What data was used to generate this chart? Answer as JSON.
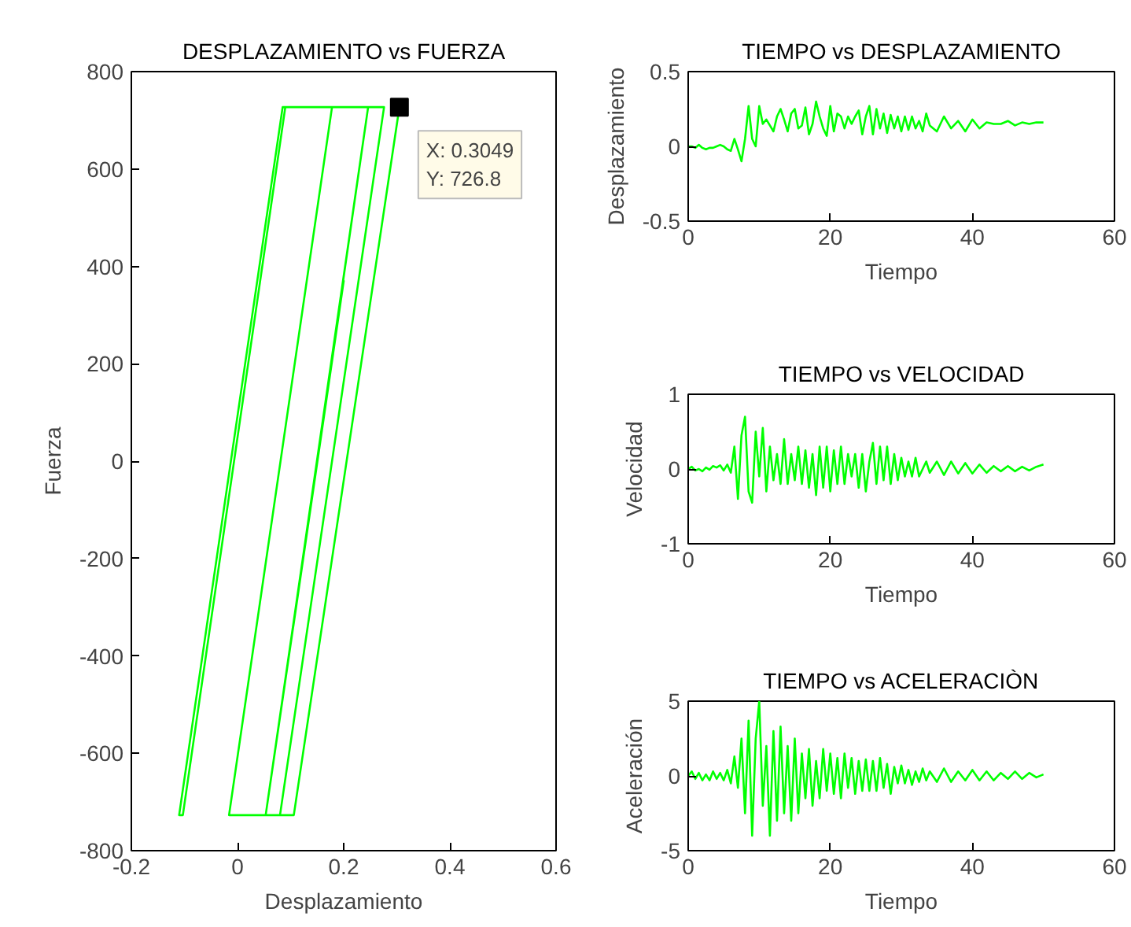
{
  "chart_data": [
    {
      "type": "line",
      "title": "DESPLAZAMIENTO vs FUERZA",
      "xlabel": "Desplazamiento",
      "ylabel": "Fuerza",
      "color": "#00ff00",
      "grid": false,
      "x": [
        0.15,
        0.246,
        0.276,
        0.08,
        -0.016,
        -0.016,
        0.178,
        0.085,
        -0.11,
        -0.103,
        0.09,
        0.246,
        0.053,
        0.2,
        0.105,
        0.18,
        0.053,
        0.106,
        0.3049
      ],
      "values": [
        0,
        727,
        727,
        -727,
        -727,
        -727,
        727,
        727,
        -727,
        -727,
        727,
        727,
        -727,
        370,
        -340,
        220,
        -727,
        -727,
        726.8
      ],
      "xlim": [
        -0.2,
        0.6
      ],
      "ylim": [
        -800,
        800
      ],
      "xticks": [
        -0.2,
        0,
        0.2,
        0.4,
        0.6
      ],
      "yticks": [
        -800,
        -600,
        -400,
        -200,
        0,
        200,
        400,
        600,
        800
      ],
      "annotations": [
        {
          "text": "X: 0.3049\nY: 726.8",
          "x": 0.3049,
          "y": 726.8
        }
      ]
    },
    {
      "type": "line",
      "title": "TIEMPO vs DESPLAZAMIENTO",
      "xlabel": "Tiempo",
      "ylabel": "Desplazamiento",
      "color": "#00ff00",
      "grid": false,
      "x": [
        0,
        0.5,
        1,
        1.5,
        2,
        2.5,
        3,
        3.5,
        4,
        4.5,
        5,
        5.5,
        6,
        6.5,
        7,
        7.5,
        8,
        8.5,
        9,
        9.5,
        10,
        10.5,
        11,
        11.5,
        12,
        12.5,
        13,
        13.5,
        14,
        14.5,
        15,
        15.5,
        16,
        16.5,
        17,
        17.5,
        18,
        18.5,
        19,
        19.5,
        20,
        20.5,
        21,
        21.5,
        22,
        22.5,
        23,
        23.5,
        24,
        24.5,
        25,
        25.5,
        26,
        26.5,
        27,
        27.5,
        28,
        28.5,
        29,
        29.5,
        30,
        30.5,
        31,
        31.5,
        32,
        32.5,
        33,
        33.5,
        34,
        35,
        36,
        37,
        38,
        39,
        40,
        41,
        42,
        43,
        44,
        45,
        46,
        47,
        48,
        49,
        50
      ],
      "values": [
        0,
        0,
        -0.01,
        0.01,
        -0.01,
        -0.02,
        -0.01,
        -0.01,
        0.0,
        0.01,
        0.0,
        -0.02,
        -0.03,
        0.05,
        -0.02,
        -0.1,
        0.05,
        0.27,
        0.05,
        0.0,
        0.27,
        0.15,
        0.18,
        0.14,
        0.1,
        0.2,
        0.25,
        0.18,
        0.1,
        0.22,
        0.25,
        0.12,
        0.14,
        0.26,
        0.08,
        0.15,
        0.3,
        0.2,
        0.12,
        0.07,
        0.27,
        0.1,
        0.22,
        0.2,
        0.12,
        0.2,
        0.15,
        0.2,
        0.24,
        0.08,
        0.2,
        0.27,
        0.08,
        0.25,
        0.12,
        0.22,
        0.09,
        0.21,
        0.12,
        0.2,
        0.1,
        0.2,
        0.11,
        0.2,
        0.12,
        0.17,
        0.1,
        0.22,
        0.14,
        0.1,
        0.2,
        0.12,
        0.17,
        0.1,
        0.18,
        0.12,
        0.16,
        0.15,
        0.15,
        0.17,
        0.14,
        0.16,
        0.15,
        0.16,
        0.16
      ],
      "xlim": [
        0,
        60
      ],
      "ylim": [
        -0.5,
        0.5
      ],
      "xticks": [
        0,
        20,
        40,
        60
      ],
      "yticks": [
        -0.5,
        0,
        0.5
      ]
    },
    {
      "type": "line",
      "title": "TIEMPO vs VELOCIDAD",
      "xlabel": "Tiempo",
      "ylabel": "Velocidad",
      "color": "#00ff00",
      "grid": false,
      "x": [
        0,
        0.5,
        1,
        1.5,
        2,
        2.5,
        3,
        3.5,
        4,
        4.5,
        5,
        5.5,
        6,
        6.5,
        7,
        7.5,
        8,
        8.5,
        9,
        9.5,
        10,
        10.5,
        11,
        11.5,
        12,
        12.5,
        13,
        13.5,
        14,
        14.5,
        15,
        15.5,
        16,
        16.5,
        17,
        17.5,
        18,
        18.5,
        19,
        19.5,
        20,
        20.5,
        21,
        21.5,
        22,
        22.5,
        23,
        23.5,
        24,
        24.5,
        25,
        25.5,
        26,
        26.5,
        27,
        27.5,
        28,
        28.5,
        29,
        29.5,
        30,
        30.5,
        31,
        31.5,
        32,
        32.5,
        33,
        33.5,
        34,
        35,
        36,
        37,
        38,
        39,
        40,
        41,
        42,
        43,
        44,
        45,
        46,
        47,
        48,
        49,
        50
      ],
      "values": [
        0,
        0.03,
        -0.02,
        0.0,
        -0.03,
        0.02,
        -0.01,
        0.04,
        0.02,
        0.05,
        -0.02,
        0.06,
        -0.05,
        0.3,
        -0.4,
        0.45,
        0.7,
        -0.3,
        -0.45,
        0.5,
        -0.1,
        0.55,
        -0.3,
        0.3,
        -0.15,
        0.2,
        -0.2,
        0.4,
        -0.2,
        0.2,
        -0.15,
        0.3,
        -0.2,
        0.25,
        -0.25,
        0.2,
        -0.35,
        0.3,
        -0.25,
        0.3,
        -0.3,
        0.25,
        -0.2,
        0.3,
        -0.2,
        0.2,
        -0.1,
        0.2,
        -0.25,
        0.2,
        -0.3,
        0.1,
        0.35,
        -0.2,
        0.3,
        -0.15,
        0.3,
        -0.2,
        0.2,
        -0.15,
        0.15,
        -0.1,
        0.1,
        -0.1,
        0.15,
        -0.1,
        0.0,
        0.1,
        -0.05,
        0.1,
        -0.08,
        0.1,
        -0.06,
        0.08,
        -0.06,
        0.06,
        -0.05,
        0.04,
        -0.03,
        0.04,
        -0.03,
        0.03,
        -0.02,
        0.03,
        0.06
      ],
      "xlim": [
        0,
        60
      ],
      "ylim": [
        -1,
        1
      ],
      "xticks": [
        0,
        20,
        40,
        60
      ],
      "yticks": [
        -1,
        0,
        1
      ]
    },
    {
      "type": "line",
      "title": "TIEMPO vs ACELERACIÒN",
      "xlabel": "Tiempo",
      "ylabel": "Aceleración",
      "color": "#00ff00",
      "grid": false,
      "x": [
        0,
        0.5,
        1,
        1.5,
        2,
        2.5,
        3,
        3.5,
        4,
        4.5,
        5,
        5.5,
        6,
        6.5,
        7,
        7.5,
        8,
        8.5,
        9,
        9.5,
        10,
        10.5,
        11,
        11.5,
        12,
        12.5,
        13,
        13.5,
        14,
        14.5,
        15,
        15.5,
        16,
        16.5,
        17,
        17.5,
        18,
        18.5,
        19,
        19.5,
        20,
        20.5,
        21,
        21.5,
        22,
        22.5,
        23,
        23.5,
        24,
        24.5,
        25,
        25.5,
        26,
        26.5,
        27,
        27.5,
        28,
        28.5,
        29,
        29.5,
        30,
        30.5,
        31,
        31.5,
        32,
        32.5,
        33,
        33.5,
        34,
        35,
        36,
        37,
        38,
        39,
        40,
        41,
        42,
        43,
        44,
        45,
        46,
        47,
        48,
        49,
        50
      ],
      "values": [
        0,
        0.3,
        -0.2,
        0.2,
        -0.3,
        0.1,
        -0.3,
        0.3,
        -0.2,
        0.2,
        -0.3,
        0.4,
        -0.5,
        1.3,
        -0.8,
        2.5,
        -2.5,
        3.7,
        -4,
        2.5,
        5,
        -2,
        2,
        -4,
        3,
        -3,
        3.3,
        -2.5,
        2,
        -3,
        2.5,
        -2.5,
        1.5,
        -1.5,
        1.8,
        -2,
        1,
        -1.5,
        1.8,
        -1,
        1.5,
        -1.2,
        1.2,
        -1.5,
        1.5,
        -0.8,
        1.2,
        -1.2,
        1,
        -1,
        1.1,
        -1,
        1,
        -1,
        1.2,
        -0.8,
        0.8,
        -1.2,
        0.6,
        -0.5,
        0.7,
        -0.5,
        0.4,
        -0.6,
        0.3,
        -0.4,
        0.5,
        -0.3,
        0.3,
        -0.4,
        0.5,
        -0.4,
        0.3,
        -0.3,
        0.4,
        -0.3,
        0.3,
        -0.3,
        0.2,
        -0.2,
        0.3,
        -0.2,
        0.2,
        -0.1,
        0.1
      ],
      "xlim": [
        0,
        60
      ],
      "ylim": [
        -5,
        5
      ],
      "xticks": [
        0,
        20,
        40,
        60
      ],
      "yticks": [
        -5,
        0,
        5
      ]
    }
  ]
}
